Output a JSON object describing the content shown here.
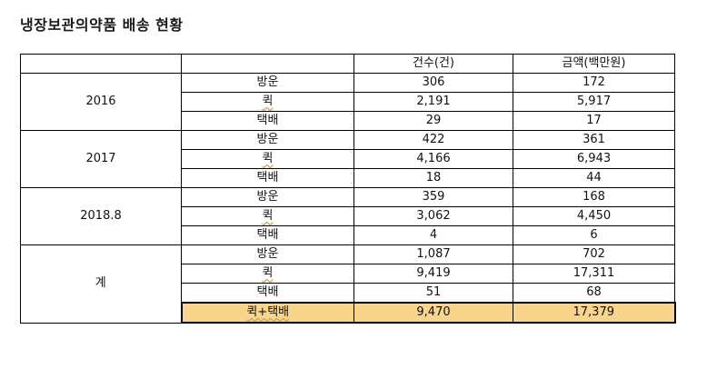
{
  "title": "냉장보관의약품 배송 현황",
  "header": {
    "col0": "",
    "col1": "",
    "col2": "건수(건)",
    "col3": "금액(백만원)"
  },
  "groups": [
    {
      "year": "2016",
      "rows": [
        {
          "type": "방운",
          "count": "306",
          "amount": "172"
        },
        {
          "type": "퀵",
          "count": "2,191",
          "amount": "5,917"
        },
        {
          "type": "택배",
          "count": "29",
          "amount": "17"
        }
      ]
    },
    {
      "year": "2017",
      "rows": [
        {
          "type": "방운",
          "count": "422",
          "amount": "361"
        },
        {
          "type": "퀵",
          "count": "4,166",
          "amount": "6,943"
        },
        {
          "type": "택배",
          "count": "18",
          "amount": "44"
        }
      ]
    },
    {
      "year": "2018.8",
      "rows": [
        {
          "type": "방운",
          "count": "359",
          "amount": "168"
        },
        {
          "type": "퀵",
          "count": "3,062",
          "amount": "4,450"
        },
        {
          "type": "택배",
          "count": "4",
          "amount": "6"
        }
      ]
    },
    {
      "year": "계",
      "rows": [
        {
          "type": "방운",
          "count": "1,087",
          "amount": "702"
        },
        {
          "type": "퀵",
          "count": "9,419",
          "amount": "17,311"
        },
        {
          "type": "택배",
          "count": "51",
          "amount": "68"
        }
      ]
    }
  ],
  "total": {
    "type": "퀵+택배",
    "count": "9,470",
    "amount": "17,379"
  },
  "colors": {
    "highlight": "#f8d58a"
  }
}
